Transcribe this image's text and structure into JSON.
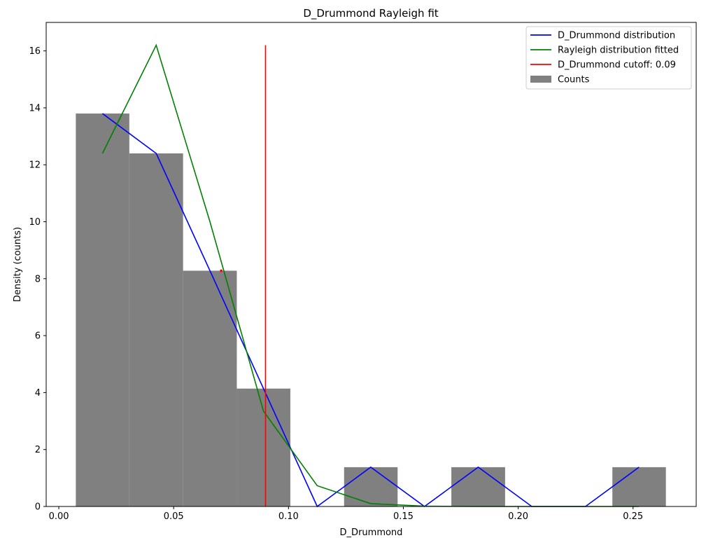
{
  "chart_data": {
    "type": "bar",
    "title": "D_Drummond Rayleigh fit",
    "xlabel": "D_Drummond",
    "ylabel": "Density (counts)",
    "xlim": [
      -0.0055,
      0.2775
    ],
    "ylim": [
      0,
      17.0
    ],
    "xticks": [
      0.0,
      0.05,
      0.1,
      0.15,
      0.2,
      0.25
    ],
    "xtick_labels": [
      "0.00",
      "0.05",
      "0.10",
      "0.15",
      "0.20",
      "0.25"
    ],
    "yticks": [
      0,
      2,
      4,
      6,
      8,
      10,
      12,
      14,
      16
    ],
    "ytick_labels": [
      "0",
      "2",
      "4",
      "6",
      "8",
      "10",
      "12",
      "14",
      "16"
    ],
    "grid": false,
    "legend_position": "top-right",
    "histogram": {
      "name": "Counts",
      "color": "#808080",
      "bin_edges": [
        0.0074,
        0.0307,
        0.0541,
        0.0775,
        0.1008,
        0.1242,
        0.1475,
        0.1709,
        0.1943,
        0.2176,
        0.241,
        0.2643
      ],
      "values": [
        13.8,
        12.4,
        8.28,
        4.14,
        0,
        1.38,
        0,
        1.38,
        0,
        0,
        1.38
      ]
    },
    "series": [
      {
        "name": "D_Drummond distribution",
        "color": "#0000ff",
        "x": [
          0.019,
          0.0424,
          0.0658,
          0.0891,
          0.1125,
          0.1358,
          0.1592,
          0.1826,
          0.2059,
          0.2293,
          0.2526
        ],
        "y": [
          13.8,
          12.4,
          8.28,
          4.14,
          0,
          1.38,
          0,
          1.38,
          0,
          0,
          1.38
        ]
      },
      {
        "name": "Rayleigh distribution fitted",
        "color": "#008000",
        "x": [
          0.019,
          0.0424,
          0.0658,
          0.0891,
          0.1125,
          0.1358,
          0.1592,
          0.1826,
          0.2059,
          0.2293,
          0.2526
        ],
        "y": [
          12.4,
          16.2,
          10.0,
          3.35,
          0.73,
          0.1,
          0.01,
          0,
          0,
          0,
          0
        ]
      }
    ],
    "cutoff": {
      "name": "D_Drummond cutoff: 0.09",
      "color": "#ff0000",
      "x": 0.09,
      "y_range": [
        0,
        16.2
      ]
    },
    "marker": {
      "color": "#ff0000",
      "x": 0.0707,
      "y": 8.28
    }
  }
}
